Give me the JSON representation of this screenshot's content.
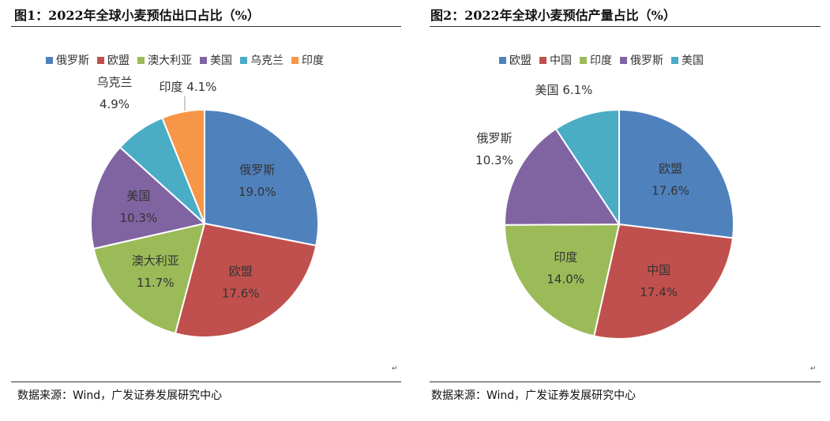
{
  "charts": [
    {
      "title": "图1：2022年全球小麦预估出口占比（%）",
      "source": "数据来源：Wind，广发证券发展研究中心"
    },
    {
      "title": "图2：2022年全球小麦预估产量占比（%）",
      "source": "数据来源：Wind，广发证券发展研究中心"
    }
  ],
  "chart_data": [
    {
      "type": "pie",
      "title": "图1：2022年全球小麦预估出口占比（%）",
      "legend_position": "top",
      "slices": [
        {
          "name": "俄罗斯",
          "value": 19.0,
          "label": "19.0%",
          "color": "#4F81BD"
        },
        {
          "name": "欧盟",
          "value": 17.6,
          "label": "17.6%",
          "color": "#C0504D"
        },
        {
          "name": "澳大利亚",
          "value": 11.7,
          "label": "11.7%",
          "color": "#9BBB59"
        },
        {
          "name": "美国",
          "value": 10.3,
          "label": "10.3%",
          "color": "#8064A2"
        },
        {
          "name": "乌克兰",
          "value": 4.9,
          "label": "4.9%",
          "color": "#4BACC6"
        },
        {
          "name": "印度",
          "value": 4.1,
          "label": "4.1%",
          "color": "#F79646"
        }
      ]
    },
    {
      "type": "pie",
      "title": "图2：2022年全球小麦预估产量占比（%）",
      "legend_position": "top",
      "slices": [
        {
          "name": "欧盟",
          "value": 17.6,
          "label": "17.6%",
          "color": "#4F81BD"
        },
        {
          "name": "中国",
          "value": 17.4,
          "label": "17.4%",
          "color": "#C0504D"
        },
        {
          "name": "印度",
          "value": 14.0,
          "label": "14.0%",
          "color": "#9BBB59"
        },
        {
          "name": "俄罗斯",
          "value": 10.3,
          "label": "10.3%",
          "color": "#8064A2"
        },
        {
          "name": "美国",
          "value": 6.1,
          "label": "6.1%",
          "color": "#4BACC6"
        }
      ]
    }
  ]
}
